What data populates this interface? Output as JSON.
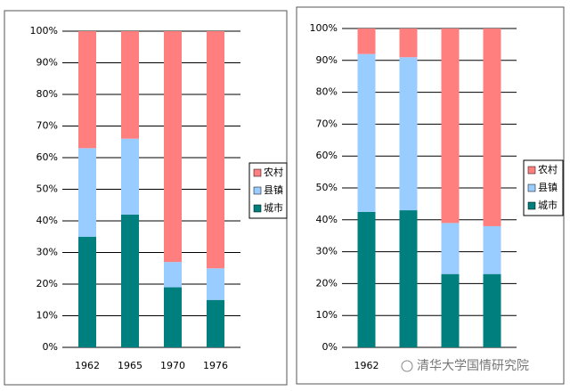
{
  "chart_data": [
    {
      "type": "bar",
      "stacked": true,
      "categories": [
        "1962",
        "1965",
        "1970",
        "1976"
      ],
      "series": [
        {
          "name": "城市",
          "color": "#007f7f",
          "values": [
            35,
            42,
            19,
            15
          ]
        },
        {
          "name": "县镇",
          "color": "#99ccff",
          "values": [
            28,
            24,
            8,
            10
          ]
        },
        {
          "name": "农村",
          "color": "#ff7f7f",
          "values": [
            37,
            34,
            73,
            75
          ]
        }
      ],
      "ylim": [
        0,
        100
      ],
      "yticks": [
        {
          "value": 0,
          "label": "0%"
        },
        {
          "value": 10,
          "label": "10%"
        },
        {
          "value": 20,
          "label": "20%"
        },
        {
          "value": 30,
          "label": "30%"
        },
        {
          "value": 40,
          "label": "40%"
        },
        {
          "value": 50,
          "label": "50%"
        },
        {
          "value": 60,
          "label": "60%"
        },
        {
          "value": 70,
          "label": "70%"
        },
        {
          "value": 80,
          "label": "80%"
        },
        {
          "value": 90,
          "label": "90%"
        },
        {
          "value": 100,
          "label": "100%"
        }
      ],
      "grid": true
    },
    {
      "type": "bar",
      "stacked": true,
      "categories": [
        "1962",
        null,
        null,
        null
      ],
      "series": [
        {
          "name": "城市",
          "color": "#007f7f",
          "values": [
            42.5,
            43,
            23,
            23
          ]
        },
        {
          "name": "县镇",
          "color": "#99ccff",
          "values": [
            49.5,
            48,
            16,
            15
          ]
        },
        {
          "name": "农村",
          "color": "#ff7f7f",
          "values": [
            8,
            9,
            61,
            62
          ]
        }
      ],
      "ylim": [
        0,
        100
      ],
      "yticks": [
        {
          "value": 0,
          "label": "0%"
        },
        {
          "value": 10,
          "label": "10%"
        },
        {
          "value": 20,
          "label": "20%"
        },
        {
          "value": 30,
          "label": "30%"
        },
        {
          "value": 40,
          "label": "40%"
        },
        {
          "value": 50,
          "label": "50%"
        },
        {
          "value": 60,
          "label": "60%"
        },
        {
          "value": 70,
          "label": "70%"
        },
        {
          "value": 80,
          "label": "80%"
        },
        {
          "value": 90,
          "label": "90%"
        },
        {
          "value": 100,
          "label": "100%"
        }
      ],
      "grid": true
    }
  ],
  "watermark": "清华大学国情研究院"
}
